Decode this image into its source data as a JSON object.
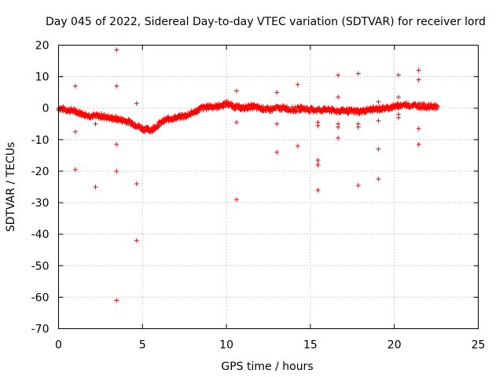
{
  "chart_data": {
    "type": "scatter",
    "title": "Day 045 of 2022, Sidereal Day-to-day VTEC variation (SDTVAR) for receiver lord",
    "xlabel": "GPS time / hours",
    "ylabel": "SDTVAR / TECUs",
    "xlim": [
      0,
      25
    ],
    "ylim": [
      -70,
      20
    ],
    "xticks": [
      0,
      5,
      10,
      15,
      20,
      25
    ],
    "yticks": [
      -70,
      -60,
      -50,
      -40,
      -30,
      -20,
      -10,
      0,
      10,
      20
    ],
    "grid": true,
    "marker": "plus",
    "color": "#ff0000",
    "trend": [
      [
        0.0,
        0.0
      ],
      [
        0.5,
        -0.5
      ],
      [
        1.0,
        -1.0
      ],
      [
        1.5,
        -2.0
      ],
      [
        2.0,
        -2.5
      ],
      [
        2.5,
        -2.5
      ],
      [
        3.0,
        -3.0
      ],
      [
        3.5,
        -3.5
      ],
      [
        4.0,
        -4.0
      ],
      [
        4.5,
        -5.0
      ],
      [
        5.0,
        -6.5
      ],
      [
        5.5,
        -7.0
      ],
      [
        6.0,
        -5.0
      ],
      [
        6.5,
        -3.5
      ],
      [
        7.0,
        -3.0
      ],
      [
        7.5,
        -2.5
      ],
      [
        8.0,
        -1.5
      ],
      [
        8.5,
        0.0
      ],
      [
        9.0,
        0.5
      ],
      [
        9.5,
        0.5
      ],
      [
        10.0,
        1.5
      ],
      [
        10.5,
        0.5
      ],
      [
        11.0,
        0.0
      ],
      [
        11.5,
        0.5
      ],
      [
        12.0,
        0.0
      ],
      [
        12.5,
        -0.5
      ],
      [
        13.0,
        0.0
      ],
      [
        13.5,
        0.0
      ],
      [
        14.0,
        -0.5
      ],
      [
        14.5,
        0.0
      ],
      [
        15.0,
        -0.5
      ],
      [
        15.5,
        -0.5
      ],
      [
        16.0,
        -0.5
      ],
      [
        16.5,
        -0.8
      ],
      [
        17.0,
        -0.8
      ],
      [
        17.5,
        -1.0
      ],
      [
        18.0,
        -1.0
      ],
      [
        18.5,
        -0.5
      ],
      [
        19.0,
        -0.3
      ],
      [
        19.5,
        0.0
      ],
      [
        20.0,
        0.5
      ],
      [
        20.5,
        1.0
      ],
      [
        21.0,
        1.0
      ],
      [
        21.5,
        0.8
      ],
      [
        22.0,
        0.5
      ],
      [
        22.6,
        0.5
      ]
    ],
    "outliers": [
      [
        1.0,
        7.0
      ],
      [
        1.0,
        -7.5
      ],
      [
        1.0,
        -19.5
      ],
      [
        2.2,
        -5.0
      ],
      [
        2.2,
        -25.0
      ],
      [
        3.45,
        18.5
      ],
      [
        3.45,
        7.0
      ],
      [
        3.45,
        -11.5
      ],
      [
        3.45,
        -20.0
      ],
      [
        3.45,
        -61.0
      ],
      [
        4.65,
        1.5
      ],
      [
        4.65,
        -24.0
      ],
      [
        4.65,
        -42.0
      ],
      [
        10.6,
        5.5
      ],
      [
        10.6,
        -4.5
      ],
      [
        10.6,
        -29.0
      ],
      [
        13.0,
        5.0
      ],
      [
        13.0,
        -5.0
      ],
      [
        13.0,
        -14.0
      ],
      [
        14.25,
        7.5
      ],
      [
        14.25,
        -12.0
      ],
      [
        15.45,
        -4.5
      ],
      [
        15.45,
        -5.5
      ],
      [
        15.45,
        -16.5
      ],
      [
        15.45,
        -18.0
      ],
      [
        15.45,
        -26.0
      ],
      [
        16.65,
        10.5
      ],
      [
        16.65,
        3.5
      ],
      [
        16.65,
        -5.0
      ],
      [
        16.65,
        -6.0
      ],
      [
        16.65,
        -9.5
      ],
      [
        17.85,
        11.0
      ],
      [
        17.85,
        -5.0
      ],
      [
        17.85,
        -6.0
      ],
      [
        17.85,
        -24.5
      ],
      [
        19.05,
        2.0
      ],
      [
        19.05,
        -4.0
      ],
      [
        19.05,
        -13.0
      ],
      [
        19.05,
        -22.5
      ],
      [
        20.25,
        10.5
      ],
      [
        20.25,
        3.5
      ],
      [
        20.25,
        -2.0
      ],
      [
        20.25,
        -3.0
      ],
      [
        21.45,
        12.0
      ],
      [
        21.45,
        9.0
      ],
      [
        21.45,
        -6.5
      ],
      [
        21.45,
        -11.5
      ]
    ]
  }
}
